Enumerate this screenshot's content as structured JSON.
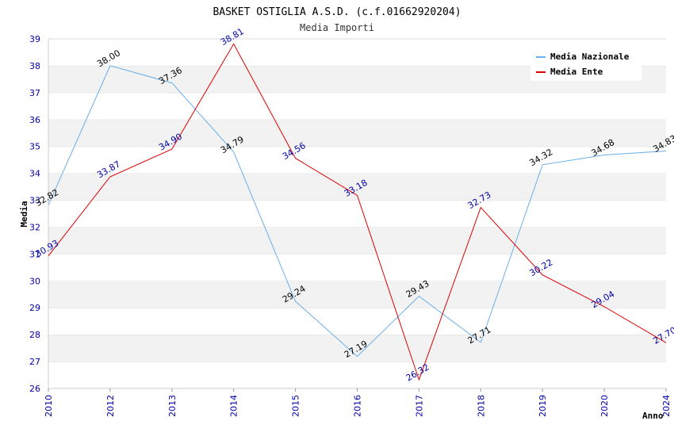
{
  "chart_data": {
    "type": "line",
    "title": "BASKET OSTIGLIA A.S.D. (c.f.01662920204)",
    "subtitle": "Media Importi",
    "xlabel": "Anno",
    "ylabel": "Media",
    "ylim": [
      26,
      39
    ],
    "yticks": [
      "26",
      "27",
      "28",
      "29",
      "30",
      "31",
      "32",
      "33",
      "34",
      "35",
      "36",
      "37",
      "38",
      "39"
    ],
    "categories": [
      "2010",
      "2012",
      "2013",
      "2014",
      "2015",
      "2016",
      "2017",
      "2018",
      "2019",
      "2020",
      "2024"
    ],
    "series": [
      {
        "name": "Media Nazionale",
        "color": "#6aaee8",
        "values": [
          32.82,
          38.0,
          37.36,
          34.79,
          29.24,
          27.19,
          29.43,
          27.71,
          34.32,
          34.68,
          34.83
        ],
        "labels": [
          "32.82",
          "38.00",
          "37.36",
          "34.79",
          "29.24",
          "27.19",
          "29.43",
          "27.71",
          "34.32",
          "34.68",
          "34.83"
        ]
      },
      {
        "name": "Media Ente",
        "color": "#dd0000",
        "values": [
          30.93,
          33.87,
          34.9,
          38.81,
          34.56,
          33.18,
          26.32,
          32.73,
          30.22,
          29.04,
          27.7
        ],
        "labels": [
          "30.93",
          "33.87",
          "34.90",
          "38.81",
          "34.56",
          "33.18",
          "26.32",
          "32.73",
          "30.22",
          "29.04",
          "27.70"
        ]
      }
    ]
  }
}
